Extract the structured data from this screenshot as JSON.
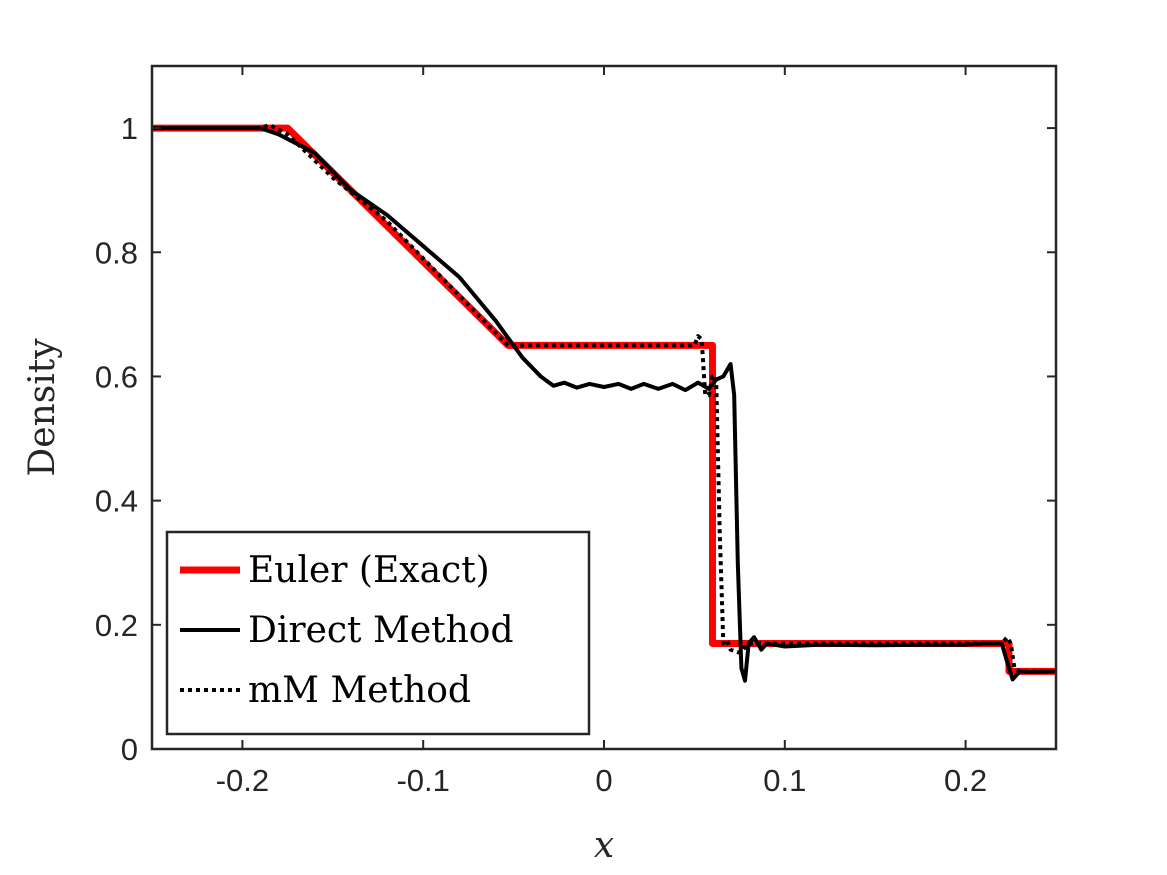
{
  "chart_data": {
    "type": "line",
    "xlabel": "x",
    "ylabel": "Density",
    "xlim": [
      -0.25,
      0.25
    ],
    "ylim": [
      0,
      1.1
    ],
    "xticks": [
      -0.2,
      -0.1,
      0,
      0.1,
      0.2
    ],
    "xtick_labels": [
      "-0.2",
      "-0.1",
      "0",
      "0.1",
      "0.2"
    ],
    "yticks": [
      0,
      0.2,
      0.4,
      0.6,
      0.8,
      1
    ],
    "ytick_labels": [
      "0",
      "0.2",
      "0.4",
      "0.6",
      "0.8",
      "1"
    ],
    "grid": false,
    "legend_position": "bottom-left",
    "colors": {
      "exact": "#ff0000",
      "direct": "#000000",
      "mm": "#000000"
    },
    "series": [
      {
        "name": "Euler (Exact)",
        "style": "solid-thick",
        "x": [
          -0.25,
          -0.175,
          -0.053,
          0.06,
          0.06,
          0.224,
          0.224,
          0.25
        ],
        "y": [
          1.0,
          1.0,
          0.65,
          0.65,
          0.17,
          0.17,
          0.125,
          0.125
        ]
      },
      {
        "name": "Direct Method",
        "style": "solid",
        "x": [
          -0.25,
          -0.2,
          -0.19,
          -0.18,
          -0.16,
          -0.14,
          -0.12,
          -0.1,
          -0.08,
          -0.06,
          -0.045,
          -0.035,
          -0.028,
          -0.022,
          -0.015,
          -0.008,
          0.0,
          0.008,
          0.015,
          0.022,
          0.03,
          0.038,
          0.045,
          0.052,
          0.058,
          0.062,
          0.066,
          0.068,
          0.07,
          0.072,
          0.074,
          0.076,
          0.078,
          0.08,
          0.083,
          0.087,
          0.09,
          0.1,
          0.12,
          0.15,
          0.18,
          0.2,
          0.21,
          0.22,
          0.223,
          0.226,
          0.23,
          0.235,
          0.25
        ],
        "y": [
          1.0,
          1.0,
          1.0,
          0.99,
          0.96,
          0.9,
          0.86,
          0.81,
          0.76,
          0.69,
          0.63,
          0.6,
          0.585,
          0.59,
          0.582,
          0.588,
          0.583,
          0.588,
          0.58,
          0.588,
          0.58,
          0.588,
          0.578,
          0.59,
          0.58,
          0.595,
          0.6,
          0.61,
          0.62,
          0.57,
          0.3,
          0.13,
          0.11,
          0.17,
          0.18,
          0.16,
          0.17,
          0.165,
          0.168,
          0.167,
          0.168,
          0.168,
          0.17,
          0.17,
          0.14,
          0.112,
          0.125,
          0.124,
          0.125
        ]
      },
      {
        "name": "mM Method",
        "style": "dotted",
        "x": [
          -0.25,
          -0.19,
          -0.185,
          -0.175,
          -0.15,
          -0.12,
          -0.09,
          -0.07,
          -0.053,
          -0.03,
          0.0,
          0.03,
          0.05,
          0.052,
          0.054,
          0.056,
          0.058,
          0.06,
          0.062,
          0.064,
          0.066,
          0.068,
          0.07,
          0.075,
          0.08,
          0.1,
          0.15,
          0.2,
          0.22,
          0.223,
          0.225,
          0.227,
          0.23,
          0.25
        ],
        "y": [
          1.0,
          1.0,
          1.005,
          0.99,
          0.92,
          0.85,
          0.76,
          0.7,
          0.65,
          0.65,
          0.65,
          0.65,
          0.65,
          0.665,
          0.66,
          0.57,
          0.57,
          0.6,
          0.6,
          0.35,
          0.17,
          0.175,
          0.16,
          0.155,
          0.17,
          0.17,
          0.17,
          0.17,
          0.17,
          0.18,
          0.17,
          0.13,
          0.125,
          0.125
        ]
      }
    ]
  }
}
